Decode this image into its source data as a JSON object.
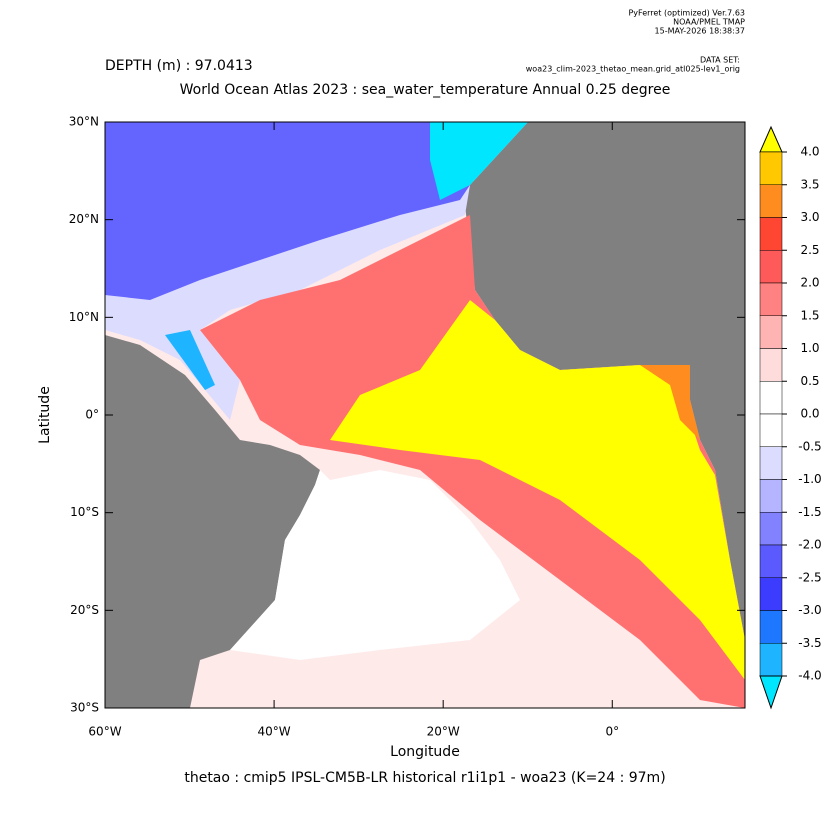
{
  "header": {
    "software": "PyFerret (optimized) Ver.7.63",
    "org": "NOAA/PMEL TMAP",
    "timestamp": "15-MAY-2026 18:38:37",
    "dataset_label": "DATA SET:",
    "dataset": "woa23_clim-2023_thetao_mean.grid_atl025-lev1_orig"
  },
  "depth": "DEPTH (m) : 97.0413",
  "title": "World Ocean Atlas 2023 : sea_water_temperature Annual  0.25 degree",
  "x_axis": {
    "label": "Longitude",
    "xlim": [
      -60,
      15.7
    ],
    "ticks": [
      {
        "value": -60,
        "label": "60°W"
      },
      {
        "value": -40,
        "label": "40°W"
      },
      {
        "value": -20,
        "label": "20°W"
      },
      {
        "value": 0,
        "label": "0°"
      }
    ]
  },
  "y_axis": {
    "label": "Latitude",
    "ylim": [
      -30,
      30
    ],
    "ticks": [
      {
        "value": 30,
        "label": "30°N"
      },
      {
        "value": 20,
        "label": "20°N"
      },
      {
        "value": 10,
        "label": "10°N"
      },
      {
        "value": 0,
        "label": "0°"
      },
      {
        "value": -10,
        "label": "10°S"
      },
      {
        "value": -20,
        "label": "20°S"
      },
      {
        "value": -30,
        "label": "30°S"
      }
    ]
  },
  "colorbar": {
    "levels": [
      {
        "value": 4,
        "label": "4.0"
      },
      {
        "value": 3.5,
        "label": "3.5"
      },
      {
        "value": 3,
        "label": "3.0"
      },
      {
        "value": 2.5,
        "label": "2.5"
      },
      {
        "value": 2,
        "label": "2.0"
      },
      {
        "value": 1.5,
        "label": "1.5"
      },
      {
        "value": 1,
        "label": "1.0"
      },
      {
        "value": 0.5,
        "label": "0.5"
      },
      {
        "value": 0,
        "label": "0.0"
      },
      {
        "value": -0.5,
        "label": "-0.5"
      },
      {
        "value": -1,
        "label": "-1.0"
      },
      {
        "value": -1.5,
        "label": "-1.5"
      },
      {
        "value": -2,
        "label": "-2.0"
      },
      {
        "value": -2.5,
        "label": "-2.5"
      },
      {
        "value": -3,
        "label": "-3.0"
      },
      {
        "value": -3.5,
        "label": "-3.5"
      },
      {
        "value": -4,
        "label": "-4.0"
      }
    ],
    "colors": [
      "#ffff00",
      "#ffc800",
      "#ff8c1e",
      "#ff4632",
      "#ff5a5a",
      "#ff8282",
      "#ffb4b4",
      "#ffdcdc",
      "#ffffff",
      "#ffffff",
      "#dcdcff",
      "#b4b4ff",
      "#8282ff",
      "#5a5aff",
      "#3c3cff",
      "#1e78ff",
      "#1eb4ff",
      "#00e6ff"
    ]
  },
  "footer": "thetao : cmip5 IPSL-CM5B-LR historical r1i1p1 - woa23  (K=24 : 97m)"
}
